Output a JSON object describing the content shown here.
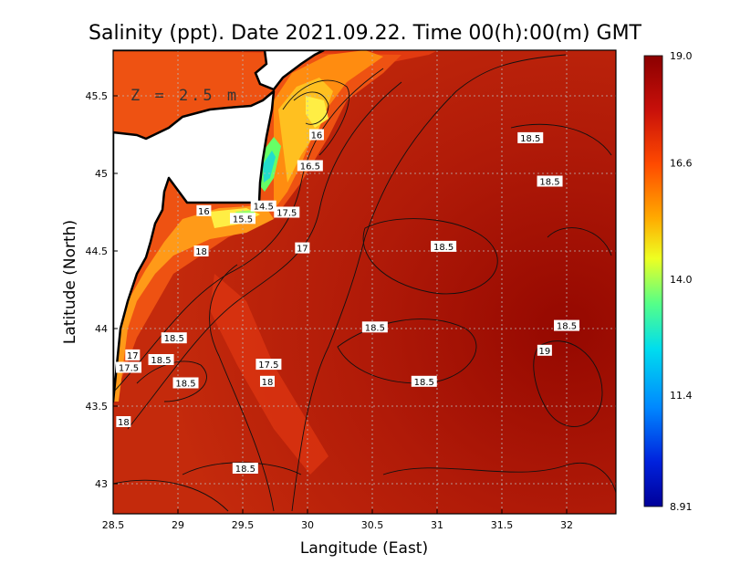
{
  "chart_data": {
    "type": "heatmap",
    "title": "Salinity (ppt). Date 2021.09.22. Time 00(h):00(m) GMT",
    "xlabel": "Langitude (East)",
    "ylabel": "Latitude (North)",
    "xlim": [
      28.5,
      32.4
    ],
    "ylim": [
      42.8,
      45.8
    ],
    "xticks": [
      "28.5",
      "29",
      "29.5",
      "30",
      "30.5",
      "31",
      "31.5",
      "32"
    ],
    "yticks": [
      "43",
      "43.5",
      "44",
      "44.5",
      "45",
      "45.5"
    ],
    "annotation": "Z = 2.5 m",
    "colorbar": {
      "min": 8.91,
      "max": 19.0,
      "labels": [
        "19.0",
        "16.6",
        "14.0",
        "11.4",
        "8.91"
      ],
      "colors": [
        "#8b0000",
        "#d41a0a",
        "#ff6a00",
        "#ffcc00",
        "#ccff33",
        "#33ff99",
        "#00ccee",
        "#0066ff",
        "#0000aa"
      ]
    },
    "grid": true,
    "contour_labels": [
      {
        "text": "16",
        "lon": 30.07,
        "lat": 45.25
      },
      {
        "text": "18.5",
        "lon": 31.72,
        "lat": 45.23
      },
      {
        "text": "16.5",
        "lon": 30.02,
        "lat": 45.05
      },
      {
        "text": "18.5",
        "lon": 31.87,
        "lat": 44.95
      },
      {
        "text": "14.5",
        "lon": 29.66,
        "lat": 44.79
      },
      {
        "text": "16",
        "lon": 29.2,
        "lat": 44.76
      },
      {
        "text": "17.5",
        "lon": 29.84,
        "lat": 44.75
      },
      {
        "text": "15.5",
        "lon": 29.5,
        "lat": 44.71
      },
      {
        "text": "17",
        "lon": 29.96,
        "lat": 44.52
      },
      {
        "text": "18.5",
        "lon": 31.05,
        "lat": 44.53
      },
      {
        "text": "18",
        "lon": 29.18,
        "lat": 44.5
      },
      {
        "text": "18.5",
        "lon": 30.52,
        "lat": 44.01
      },
      {
        "text": "18.5",
        "lon": 32.0,
        "lat": 44.02
      },
      {
        "text": "18.5",
        "lon": 28.97,
        "lat": 43.94
      },
      {
        "text": "19",
        "lon": 31.83,
        "lat": 43.86
      },
      {
        "text": "17",
        "lon": 28.65,
        "lat": 43.83
      },
      {
        "text": "18.5",
        "lon": 28.87,
        "lat": 43.8
      },
      {
        "text": "17.5",
        "lon": 29.7,
        "lat": 43.77
      },
      {
        "text": "17.5",
        "lon": 28.62,
        "lat": 43.75
      },
      {
        "text": "18",
        "lon": 29.69,
        "lat": 43.66
      },
      {
        "text": "18.5",
        "lon": 29.06,
        "lat": 43.65
      },
      {
        "text": "18.5",
        "lon": 30.9,
        "lat": 43.66
      },
      {
        "text": "18",
        "lon": 28.58,
        "lat": 43.4
      },
      {
        "text": "18.5",
        "lon": 29.52,
        "lat": 43.1
      }
    ]
  }
}
